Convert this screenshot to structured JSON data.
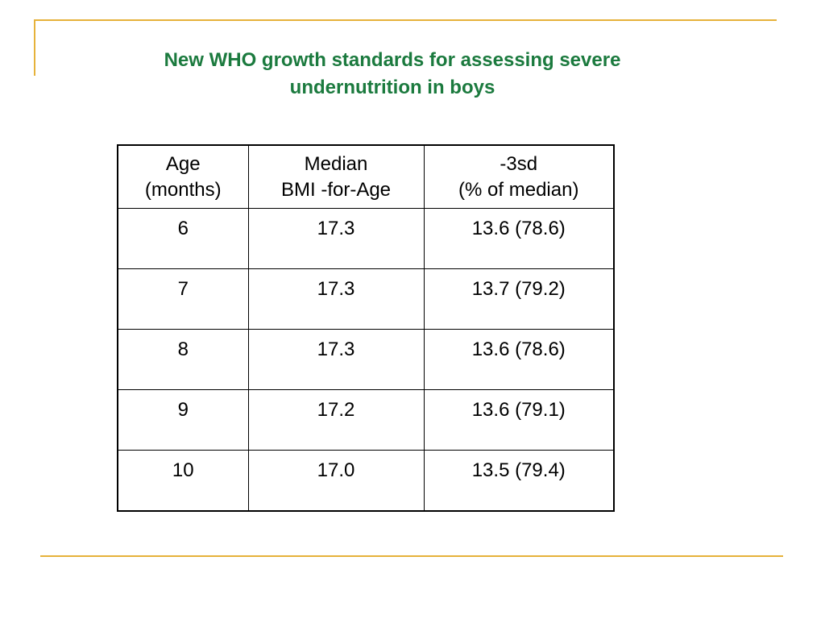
{
  "slide": {
    "title_line1": "New WHO growth standards for assessing severe",
    "title_line2": "undernutrition in boys",
    "accent_color": "#e6b23a",
    "title_color": "#1b7a3e"
  },
  "table": {
    "headers": [
      {
        "line1": "Age",
        "line2": "(months)"
      },
      {
        "line1": "Median",
        "line2": "BMI -for-Age"
      },
      {
        "line1": "-3sd",
        "line2": "(% of median)"
      }
    ],
    "rows": [
      [
        "6",
        "17.3",
        "13.6 (78.6)"
      ],
      [
        "7",
        "17.3",
        "13.7 (79.2)"
      ],
      [
        "8",
        "17.3",
        "13.6 (78.6)"
      ],
      [
        "9",
        "17.2",
        "13.6 (79.1)"
      ],
      [
        "10",
        "17.0",
        "13.5 (79.4)"
      ]
    ]
  }
}
